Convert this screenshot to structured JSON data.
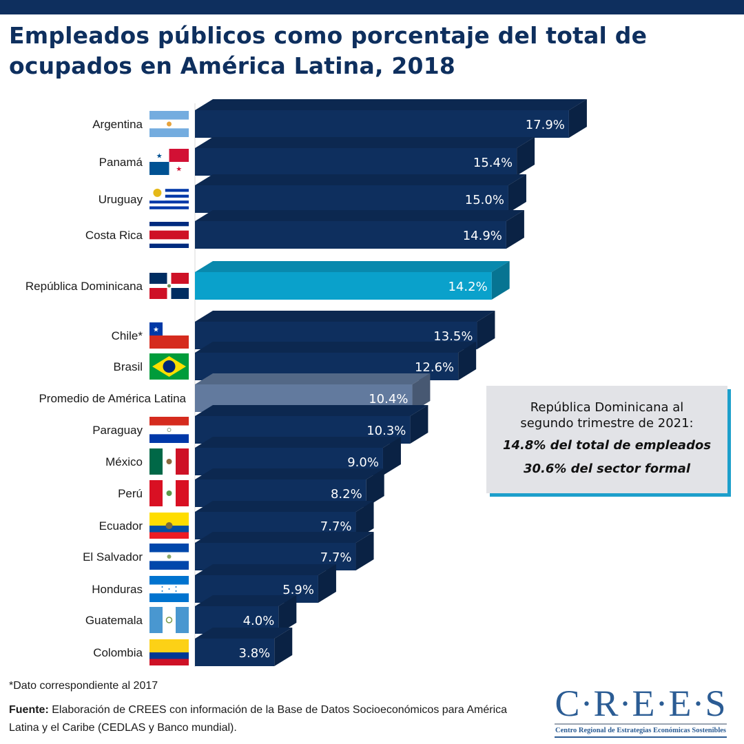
{
  "header": {
    "title": "Empleados públicos como porcentaje del total de ocupados en América Latina, 2018"
  },
  "colors": {
    "bar_default": "#0e2f5e",
    "bar_highlight": "#0aa1cb",
    "bar_average": "#627a9e",
    "title": "#0e2f5e",
    "callout_bg": "#e2e3e7",
    "callout_shadow": "#1d9fcb",
    "logo": "#2b5c94"
  },
  "chart_data": {
    "type": "bar",
    "orientation": "horizontal",
    "style": "3d",
    "title": "Empleados públicos como porcentaje del total de ocupados en América Latina, 2018",
    "xlabel": "",
    "ylabel": "",
    "unit": "%",
    "grid": false,
    "legend": "none",
    "xlim": [
      0,
      18
    ],
    "categories": [
      "Argentina",
      "Panamá",
      "Uruguay",
      "Costa Rica",
      "República Dominicana",
      "Chile*",
      "Brasil",
      "Promedio de América Latina",
      "Paraguay",
      "México",
      "Perú",
      "Ecuador",
      "El Salvador",
      "Honduras",
      "Guatemala",
      "Colombia"
    ],
    "values": [
      17.9,
      15.4,
      15.0,
      14.9,
      14.2,
      13.5,
      12.6,
      10.4,
      10.3,
      9.0,
      8.2,
      7.7,
      7.7,
      5.9,
      4.0,
      3.8
    ],
    "data_labels": [
      "17.9%",
      "15.4%",
      "15.0%",
      "14.9%",
      "14.2%",
      "13.5%",
      "12.6%",
      "10.4%",
      "10.3%",
      "9.0%",
      "8.2%",
      "7.7%",
      "7.7%",
      "5.9%",
      "4.0%",
      "3.8%"
    ],
    "highlight": [
      "default",
      "default",
      "default",
      "default",
      "highlight",
      "default",
      "default",
      "average",
      "default",
      "default",
      "default",
      "default",
      "default",
      "default",
      "default",
      "default"
    ],
    "flags": [
      "argentina-flag",
      "panama-flag",
      "uruguay-flag",
      "costa-rica-flag",
      "dominican-republic-flag",
      "chile-flag",
      "brazil-flag",
      "",
      "paraguay-flag",
      "mexico-flag",
      "peru-flag",
      "ecuador-flag",
      "el-salvador-flag",
      "honduras-flag",
      "guatemala-flag",
      "colombia-flag"
    ]
  },
  "callout": {
    "line1": "República Dominicana al",
    "line2": "segundo trimestre de 2021:",
    "line3": "14.8% del total de empleados",
    "line4": "30.6% del sector formal"
  },
  "footer": {
    "note": "*Dato correspondiente al 2017",
    "source_label": "Fuente:",
    "source_text": " Elaboración de CREES con información de la Base de Datos Socioeconómicos para América Latina y el Caribe (CEDLAS y Banco mundial)."
  },
  "logo": {
    "acronym": "C·R·E·E·S",
    "full_name": "Centro Regional de Estrategias Económicas Sostenibles"
  }
}
